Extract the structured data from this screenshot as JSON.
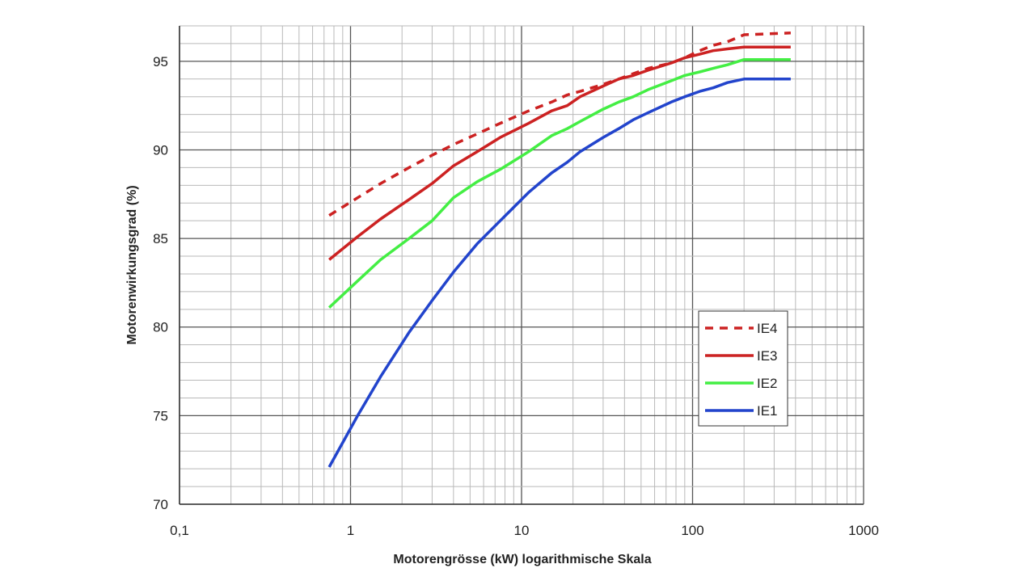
{
  "chart_data": {
    "type": "line",
    "title": "",
    "xlabel": "Motorengrösse (kW) logarithmische Skala",
    "ylabel": "Motorenwirkungsgrad (%)",
    "xscale": "log",
    "xlim": [
      0.1,
      1000
    ],
    "ylim": [
      70,
      97
    ],
    "grid": true,
    "legend_position": "lower-right",
    "x_ticks": [
      {
        "value": 0.1,
        "label": "0,1"
      },
      {
        "value": 1,
        "label": "1"
      },
      {
        "value": 10,
        "label": "10"
      },
      {
        "value": 100,
        "label": "100"
      },
      {
        "value": 1000,
        "label": "1000"
      }
    ],
    "y_ticks": [
      {
        "value": 70,
        "label": "70"
      },
      {
        "value": 75,
        "label": "75"
      },
      {
        "value": 80,
        "label": "80"
      },
      {
        "value": 85,
        "label": "85"
      },
      {
        "value": 90,
        "label": "90"
      },
      {
        "value": 95,
        "label": "95"
      }
    ],
    "series": [
      {
        "name": "IE4",
        "color": "#cc2222",
        "dash": true,
        "x": [
          0.75,
          1.1,
          1.5,
          2.2,
          3,
          4,
          5.5,
          7.5,
          11,
          15,
          18.5,
          22,
          30,
          37,
          45,
          55,
          75,
          90,
          110,
          132,
          160,
          200,
          375
        ],
        "y": [
          86.3,
          87.3,
          88.1,
          89.0,
          89.7,
          90.3,
          90.9,
          91.5,
          92.2,
          92.7,
          93.1,
          93.3,
          93.7,
          94.0,
          94.3,
          94.6,
          94.9,
          95.2,
          95.6,
          95.9,
          96.1,
          96.5,
          96.6
        ]
      },
      {
        "name": "IE3",
        "color": "#cc2222",
        "dash": false,
        "x": [
          0.75,
          1.1,
          1.5,
          2.2,
          3,
          4,
          5.5,
          7.5,
          11,
          15,
          18.5,
          22,
          30,
          37,
          45,
          55,
          75,
          90,
          110,
          132,
          160,
          200,
          375
        ],
        "y": [
          83.8,
          85.1,
          86.1,
          87.2,
          88.1,
          89.1,
          89.9,
          90.7,
          91.5,
          92.2,
          92.5,
          93.0,
          93.6,
          94.0,
          94.2,
          94.5,
          94.9,
          95.2,
          95.4,
          95.6,
          95.7,
          95.8,
          95.8
        ]
      },
      {
        "name": "IE2",
        "color": "#44ee44",
        "dash": false,
        "x": [
          0.75,
          1.1,
          1.5,
          2.2,
          3,
          4,
          5.5,
          7.5,
          11,
          15,
          18.5,
          22,
          30,
          37,
          45,
          55,
          75,
          90,
          110,
          132,
          160,
          200,
          375
        ],
        "y": [
          81.1,
          82.6,
          83.8,
          85.0,
          86.0,
          87.3,
          88.2,
          88.9,
          89.9,
          90.8,
          91.2,
          91.6,
          92.3,
          92.7,
          93.0,
          93.4,
          93.9,
          94.2,
          94.4,
          94.6,
          94.8,
          95.1,
          95.1
        ]
      },
      {
        "name": "IE1",
        "color": "#2244cc",
        "dash": false,
        "x": [
          0.75,
          1.1,
          1.5,
          2.2,
          3,
          4,
          5.5,
          7.5,
          11,
          15,
          18.5,
          22,
          30,
          37,
          45,
          55,
          75,
          90,
          110,
          132,
          160,
          200,
          375
        ],
        "y": [
          72.1,
          75.0,
          77.2,
          79.7,
          81.5,
          83.1,
          84.7,
          86.0,
          87.6,
          88.7,
          89.3,
          89.9,
          90.7,
          91.2,
          91.7,
          92.1,
          92.7,
          93.0,
          93.3,
          93.5,
          93.8,
          94.0,
          94.0
        ]
      }
    ]
  }
}
